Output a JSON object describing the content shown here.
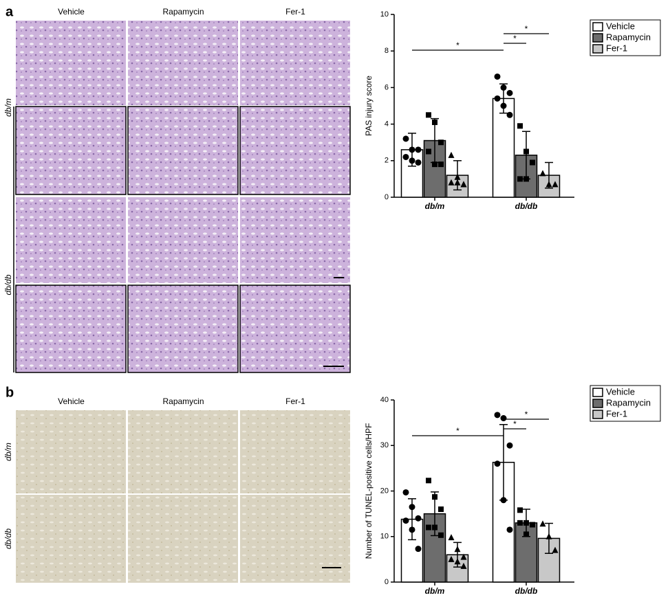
{
  "figure": {
    "panels": [
      {
        "label": "a",
        "columns": [
          "Vehicle",
          "Rapamycin",
          "Fer-1"
        ],
        "rows": [
          "db/m",
          "db/db"
        ]
      },
      {
        "label": "b",
        "columns": [
          "Vehicle",
          "Rapamycin",
          "Fer-1"
        ],
        "rows": [
          "db/m",
          "db/db"
        ]
      }
    ]
  },
  "chart_data": [
    {
      "type": "bar",
      "ylabel": "PAS injury score",
      "categories": [
        "db/m",
        "db/db"
      ],
      "ylim": [
        0,
        10
      ],
      "yticks": [
        0,
        2,
        4,
        6,
        8,
        10
      ],
      "legend": "upper right outside",
      "series": [
        {
          "name": "Vehicle",
          "color": "#ffffff",
          "marker": "circle",
          "values": [
            2.6,
            5.4
          ],
          "errors": [
            0.9,
            0.8
          ],
          "points": [
            [
              3.2,
              2.6,
              2.6,
              2.2,
              2.0,
              1.9
            ],
            [
              6.6,
              6.0,
              5.7,
              5.4,
              5.0,
              4.5
            ]
          ]
        },
        {
          "name": "Rapamycin",
          "color": "#6d6d6d",
          "marker": "square",
          "values": [
            3.1,
            2.3
          ],
          "errors": [
            1.2,
            1.3
          ],
          "points": [
            [
              4.5,
              4.1,
              3.0,
              2.5,
              1.8,
              1.8
            ],
            [
              3.9,
              2.5,
              1.9,
              1.0,
              1.0
            ]
          ]
        },
        {
          "name": "Fer-1",
          "color": "#c8c8c8",
          "marker": "triangle",
          "values": [
            1.2,
            1.2
          ],
          "errors": [
            0.8,
            0.7
          ],
          "points": [
            [
              2.3,
              1.1,
              0.7,
              0.8,
              0.8,
              0.7
            ],
            [
              1.3,
              0.7,
              0.7
            ]
          ]
        }
      ],
      "annotations": [
        {
          "label": "*",
          "between": [
            [
              0,
              0
            ],
            [
              1,
              0
            ]
          ]
        },
        {
          "label": "*",
          "between": [
            [
              1,
              0
            ],
            [
              1,
              1
            ]
          ]
        },
        {
          "label": "*",
          "between": [
            [
              1,
              0
            ],
            [
              1,
              2
            ]
          ]
        }
      ]
    },
    {
      "type": "bar",
      "ylabel": "Number of TUNEL-positive cells/HPF",
      "categories": [
        "db/m",
        "db/db"
      ],
      "ylim": [
        0,
        40
      ],
      "yticks": [
        0,
        10,
        20,
        30,
        40
      ],
      "legend": "upper right outside",
      "series": [
        {
          "name": "Vehicle",
          "color": "#ffffff",
          "marker": "circle",
          "values": [
            13.8,
            26.3
          ],
          "errors": [
            4.5,
            8.3
          ],
          "points": [
            [
              19.7,
              16.5,
              14.0,
              13.5,
              11.5,
              7.3
            ],
            [
              36.7,
              36.0,
              30.0,
              26.0,
              18.0,
              11.5
            ]
          ]
        },
        {
          "name": "Rapamycin",
          "color": "#6d6d6d",
          "marker": "square",
          "values": [
            15.0,
            13.0
          ],
          "errors": [
            4.8,
            3.0
          ],
          "points": [
            [
              22.3,
              18.7,
              16.0,
              12.0,
              12.0,
              10.3
            ],
            [
              15.8,
              13.0,
              12.6,
              13.0,
              10.5
            ]
          ]
        },
        {
          "name": "Fer-1",
          "color": "#c8c8c8",
          "marker": "triangle",
          "values": [
            6.0,
            9.6
          ],
          "errors": [
            2.7,
            3.3
          ],
          "points": [
            [
              9.8,
              7.2,
              5.5,
              5.0,
              4.5,
              3.5
            ],
            [
              12.8,
              10.0,
              7.0
            ]
          ]
        }
      ],
      "annotations": [
        {
          "label": "*",
          "between": [
            [
              0,
              0
            ],
            [
              1,
              0
            ]
          ]
        },
        {
          "label": "*",
          "between": [
            [
              1,
              0
            ],
            [
              1,
              1
            ]
          ]
        },
        {
          "label": "*",
          "between": [
            [
              1,
              0
            ],
            [
              1,
              2
            ]
          ]
        }
      ]
    }
  ]
}
